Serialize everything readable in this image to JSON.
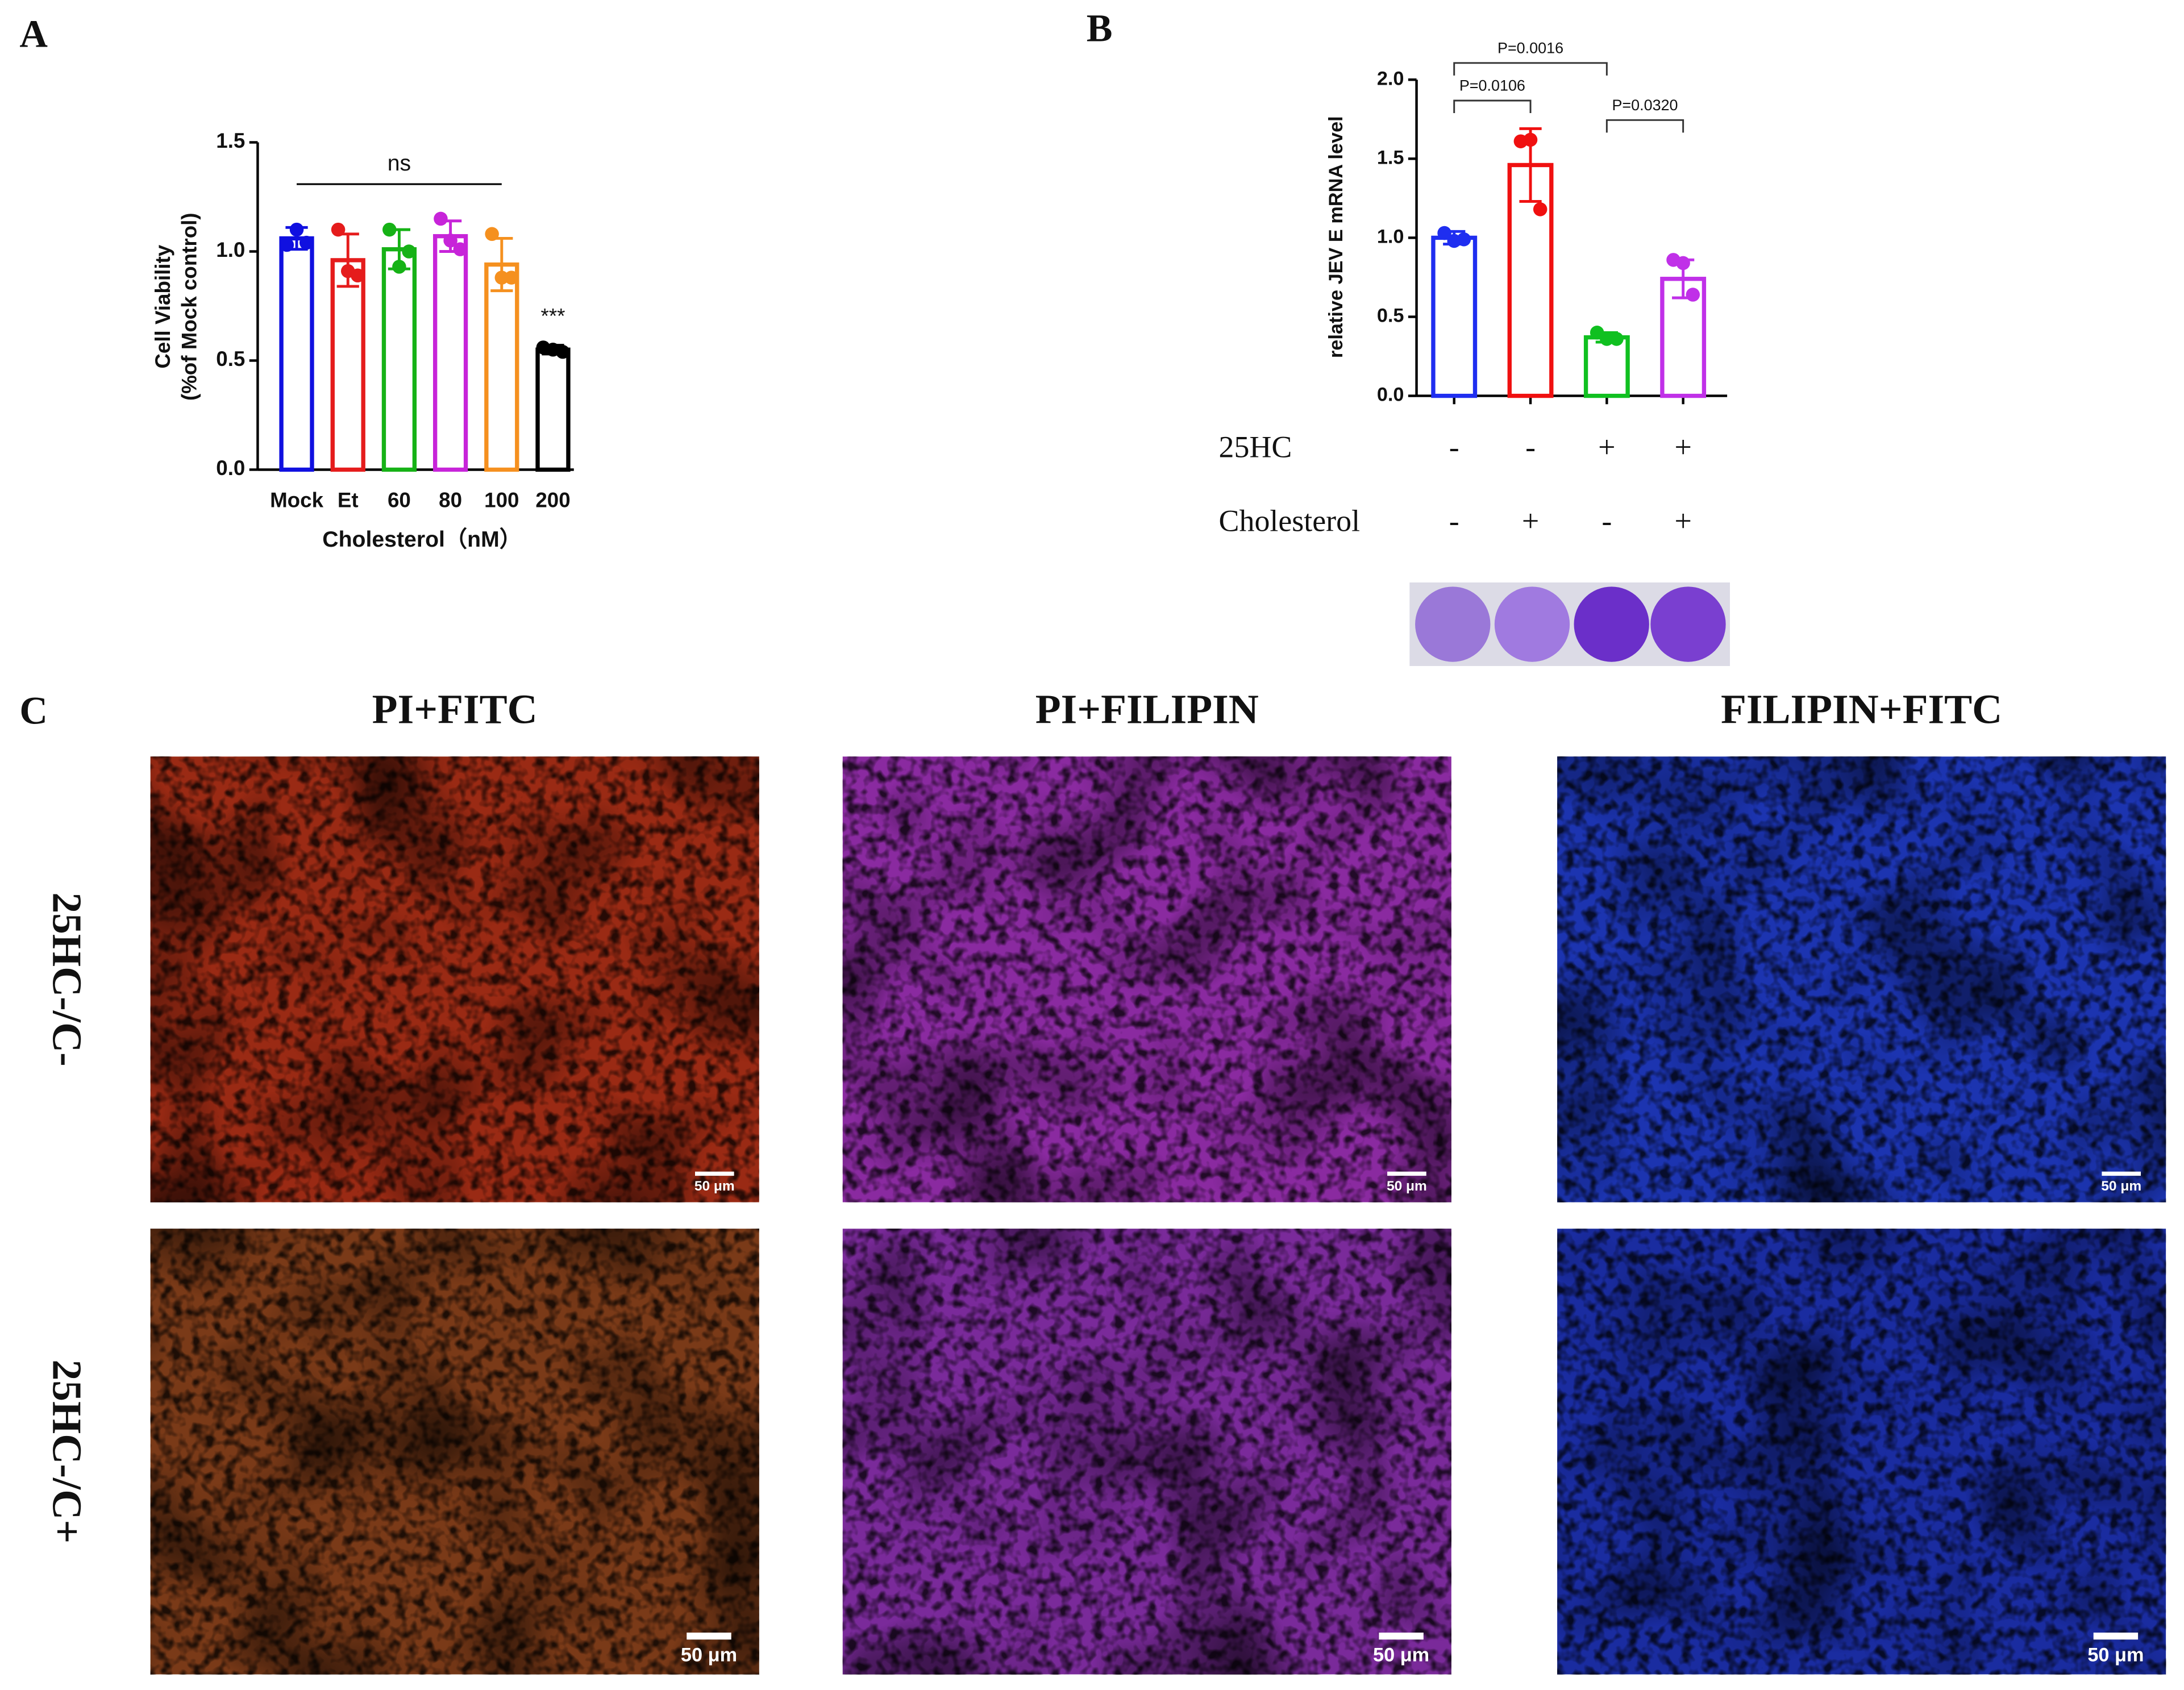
{
  "panel_labels": [
    "A",
    "B",
    "C"
  ],
  "chart_data": [
    {
      "type": "bar",
      "categories": [
        "Mock",
        "Et",
        "60",
        "80",
        "100",
        "200"
      ],
      "x_label": "Cholesterol（nM）",
      "y_label": [
        "Cell Viability",
        "(%of Mock control)"
      ],
      "values": [
        1.06,
        0.96,
        1.01,
        1.07,
        0.94,
        0.55
      ],
      "errors": [
        0.05,
        0.12,
        0.09,
        0.07,
        0.12,
        0.02
      ],
      "points": [
        [
          1.03,
          1.1,
          1.04
        ],
        [
          1.1,
          0.91,
          0.89
        ],
        [
          1.1,
          0.93,
          1.0
        ],
        [
          1.15,
          1.05,
          1.01
        ],
        [
          1.08,
          0.88,
          0.88
        ],
        [
          0.56,
          0.55,
          0.54
        ]
      ],
      "colors": [
        "#1010e0",
        "#e51c1c",
        "#16b216",
        "#c724d9",
        "#f5901f",
        "#000000"
      ],
      "ylim": [
        0,
        1.5
      ],
      "yticks": [
        {
          "value": 0,
          "label": "0.0"
        },
        0.5,
        {
          "value": 1,
          "label": "1.0"
        },
        1.5
      ],
      "comparisons": [
        {
          "from": 0,
          "to": 4,
          "label": "ns"
        }
      ],
      "significance": [
        {
          "index": 5,
          "label": "***"
        }
      ]
    },
    {
      "type": "bar",
      "categories": [
        null,
        null,
        null,
        null
      ],
      "y_label": [
        "relative JEV E mRNA level"
      ],
      "values": [
        1.0,
        1.46,
        0.37,
        0.74
      ],
      "errors": [
        0.04,
        0.23,
        0.03,
        0.12
      ],
      "points": [
        [
          1.03,
          0.98,
          0.99
        ],
        [
          1.61,
          1.62,
          1.18
        ],
        [
          0.4,
          0.36,
          0.36
        ],
        [
          0.86,
          0.84,
          0.64
        ]
      ],
      "colors": [
        "#1f2ef0",
        "#f01010",
        "#10c020",
        "#c030e8"
      ],
      "ylim": [
        0,
        2
      ],
      "yticks": [
        {
          "value": 0,
          "label": "0.0"
        },
        0.5,
        {
          "value": 1,
          "label": "1.0"
        },
        1.5,
        {
          "value": 2,
          "label": "2.0"
        }
      ],
      "comparisons": [
        {
          "from": 0,
          "to": 2,
          "label": "P=0.0016"
        },
        {
          "from": 0,
          "to": 1,
          "label": "P=0.0106"
        },
        {
          "from": 2,
          "to": 3,
          "label": "P=0.0320"
        }
      ],
      "conditions": [
        {
          "name": "25HC",
          "signs": [
            "-",
            "-",
            "+",
            "+"
          ]
        },
        {
          "name": "Cholesterol",
          "signs": [
            "-",
            "+",
            "-",
            "+"
          ]
        }
      ]
    }
  ],
  "micrographs": {
    "columns": [
      "PI+FITC",
      "PI+FILIPIN",
      "FILIPIN+FITC"
    ],
    "rows": [
      "25HC-/C-",
      "25HC-/C+"
    ],
    "scale_bar": "50 μm"
  }
}
